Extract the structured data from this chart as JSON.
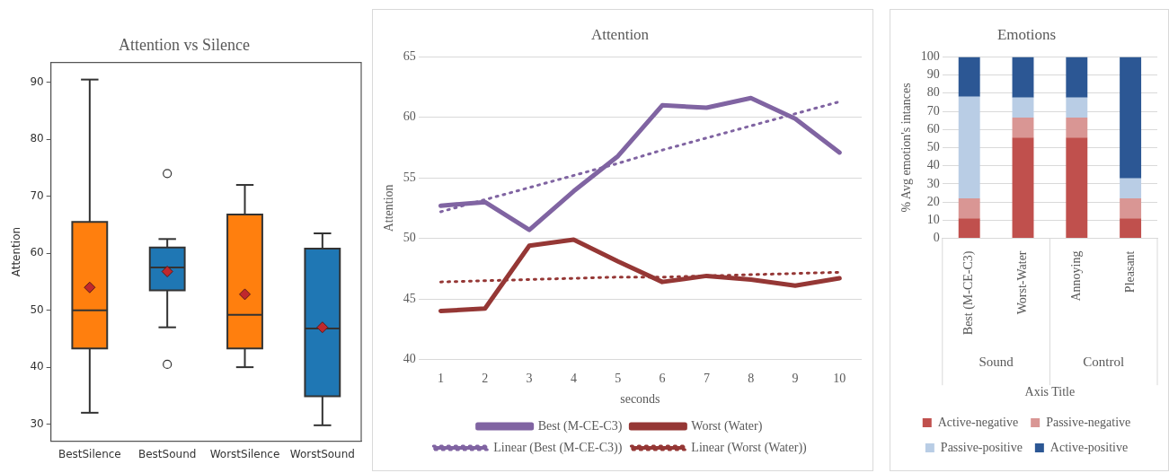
{
  "chart_data": [
    {
      "type": "box",
      "title": "Attention vs Silence",
      "ylabel": "Attention",
      "categories": [
        "BestSilence",
        "BestSound",
        "WorstSilence",
        "WorstSound"
      ],
      "colors": [
        "#ff7f0e",
        "#1f77b4",
        "#ff7f0e",
        "#1f77b4"
      ],
      "boxes": [
        {
          "low": 32,
          "q1": 43.3,
          "median": 50,
          "q3": 65.5,
          "high": 90.5,
          "mean": 54
        },
        {
          "low": 47,
          "q1": 53.5,
          "median": 57.5,
          "q3": 61,
          "high": 62.5,
          "mean": 56.8,
          "outliers": [
            74,
            40.5
          ]
        },
        {
          "low": 40,
          "q1": 43.3,
          "median": 49.2,
          "q3": 66.8,
          "high": 72,
          "mean": 52.8
        },
        {
          "low": 29.8,
          "q1": 34.9,
          "median": 46.8,
          "q3": 60.8,
          "high": 63.5,
          "mean": 47
        }
      ],
      "ylim": [
        27,
        93.5
      ],
      "yticks": [
        30,
        40,
        50,
        60,
        70,
        80,
        90
      ],
      "grid": false,
      "legend": false
    },
    {
      "type": "line",
      "title": "Attention",
      "xlabel": "seconds",
      "ylabel": "Attention",
      "categories": [
        "1",
        "2",
        "3",
        "4",
        "5",
        "6",
        "7",
        "8",
        "9",
        "10"
      ],
      "series": [
        {
          "name": "Best (M-CE-C3)",
          "color": "#8064a2",
          "values": [
            52.7,
            53,
            50.7,
            53.9,
            56.8,
            61,
            60.8,
            61.6,
            59.9,
            57.1
          ]
        },
        {
          "name": "Worst (Water)",
          "color": "#953735",
          "values": [
            44,
            44.2,
            49.4,
            49.9,
            48.1,
            46.4,
            46.9,
            46.6,
            46.1,
            46.7
          ]
        },
        {
          "name": "Linear (Best (M-CE-C3))",
          "color": "#8064a2",
          "line_style": "dotted",
          "values": [
            52.2,
            53.2,
            54.2,
            55.2,
            56.2,
            57.3,
            58.3,
            59.3,
            60.3,
            61.3
          ]
        },
        {
          "name": "Linear (Worst (Water))",
          "color": "#953735",
          "line_style": "dotted",
          "values": [
            46.4,
            46.5,
            46.6,
            46.7,
            46.8,
            46.8,
            46.9,
            47.0,
            47.1,
            47.2
          ]
        }
      ],
      "ylim": [
        40,
        65
      ],
      "yticks": [
        40,
        45,
        50,
        55,
        60,
        65
      ],
      "grid": "y",
      "legend": "bottom",
      "marker": "none"
    },
    {
      "type": "bar",
      "stacked": true,
      "title": "Emotions",
      "xlabel": "Axis Title",
      "ylabel": "% Avg emotion's intances",
      "categories": [
        "Best (M-CE-C3)",
        "Worst-Water",
        "Annoying",
        "Pleasant"
      ],
      "series": [
        {
          "name": "Active-negative",
          "color": "#c0504d",
          "values": [
            11,
            55.5,
            55.5,
            11
          ]
        },
        {
          "name": "Passive-negative",
          "color": "#d99694",
          "values": [
            11,
            11,
            11,
            11
          ]
        },
        {
          "name": "Passive-positive",
          "color": "#b9cde5",
          "values": [
            56,
            11,
            11,
            11
          ]
        },
        {
          "name": "Active-positive",
          "color": "#2c5794",
          "values": [
            22,
            22.5,
            22.5,
            67
          ]
        }
      ],
      "annotations": [
        "Sound",
        "Control"
      ],
      "ylim": [
        0,
        100
      ],
      "yticks": [
        0,
        10,
        20,
        30,
        40,
        50,
        60,
        70,
        80,
        90,
        100
      ],
      "grid": "y",
      "legend": "bottom"
    }
  ]
}
